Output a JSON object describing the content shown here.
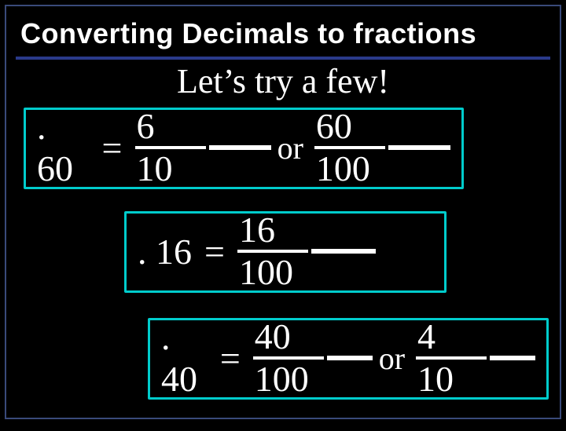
{
  "colors": {
    "background": "#000000",
    "frame_border": "#3a4a7a",
    "title_underline": "#2a3a8a",
    "box_border": "#00cccc",
    "text": "#ffffff",
    "bar": "#ffffff"
  },
  "typography": {
    "title_font": "Arial",
    "title_size_pt": 28,
    "title_weight": "bold",
    "body_font": "Times New Roman",
    "subtitle_size_pt": 34,
    "equation_size_pt": 36
  },
  "title": "Converting Decimals to fractions",
  "subtitle": "Let’s try a few!",
  "equations": [
    {
      "decimal": ". 60",
      "equals": "=",
      "fractions": [
        {
          "numerator": "6",
          "denominator": "10"
        },
        {
          "numerator": "60",
          "denominator": "100"
        }
      ],
      "joiner": "or"
    },
    {
      "decimal": ". 16",
      "equals": "=",
      "fractions": [
        {
          "numerator": "16",
          "denominator": "100"
        }
      ],
      "joiner": null
    },
    {
      "decimal": ". 40",
      "equals": "=",
      "fractions": [
        {
          "numerator": "40",
          "denominator": "100"
        },
        {
          "numerator": "4",
          "denominator": "10"
        }
      ],
      "joiner": "or"
    }
  ]
}
